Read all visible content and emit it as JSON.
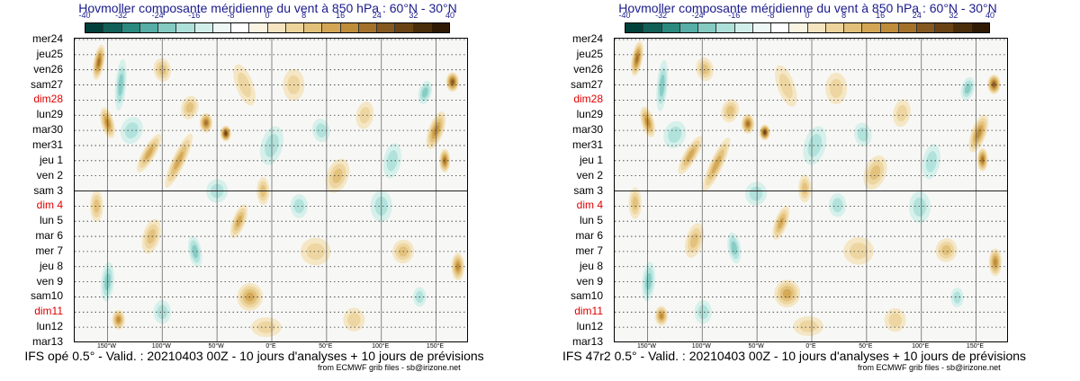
{
  "title": "Hovmoller composante méridienne du vent à 850 hPa : 60°N - 30°N",
  "colorbar": {
    "tick_labels": [
      "-40",
      "-32",
      "-24",
      "-16",
      "-8",
      "0",
      "8",
      "16",
      "24",
      "32",
      "40"
    ],
    "colors": [
      "#01403a",
      "#125f58",
      "#2a8a80",
      "#56aea6",
      "#84cac2",
      "#aee0da",
      "#d2eeea",
      "#edf7f6",
      "#ffffff",
      "#fbf3e2",
      "#f4e4c0",
      "#ecd49c",
      "#e1c07a",
      "#d2a654",
      "#bf8c3a",
      "#a4712b",
      "#855820",
      "#6a4314",
      "#4a2d0a",
      "#2e1a04"
    ]
  },
  "chart_data": {
    "type": "heatmap",
    "title": "Hovmoller composante méridienne du vent à 850 hPa : 60°N - 30°N",
    "variable": "meridional wind component 850 hPa",
    "latitude_band": "60°N - 30°N",
    "y_tick_labels": [
      "mer24",
      "jeu25",
      "ven26",
      "sam27",
      "dim28",
      "lun29",
      "mar30",
      "mer31",
      "jeu 1",
      "ven 2",
      "sam 3",
      "dim 4",
      "lun 5",
      "mar 6",
      "mer 7",
      "jeu 8",
      "ven 9",
      "sam10",
      "dim11",
      "lun12",
      "mar13"
    ],
    "sunday_labels": [
      "dim28",
      "dim 4",
      "dim11"
    ],
    "x_tick_labels": [
      "150°W",
      "100°W",
      "50°W",
      "0°E",
      "50°E",
      "100°E",
      "150°E"
    ],
    "x_tick_values": [
      -150,
      -100,
      -50,
      0,
      50,
      100,
      150
    ],
    "xlim": [
      -180,
      180
    ],
    "color_scale_range": [
      -40,
      40
    ],
    "color_scale_step": 4,
    "analysis_forecast_split": "sam 3",
    "panels": [
      {
        "model": "IFS opé 0.5°",
        "footer": "IFS opé 0.5° - Valid. : 20210403 00Z - 10 jours d'analyses + 10 jours de prévisions",
        "credit": "from ECMWF grib files - sb@irizone.net"
      },
      {
        "model": "IFS 47r2 0.5°",
        "footer": "IFS 47r2 0.5° - Valid. : 20210403 00Z - 10 jours d'analyses + 10 jours de prévisions",
        "credit": "from ECMWF grib files - sb@irizone.net"
      }
    ]
  }
}
